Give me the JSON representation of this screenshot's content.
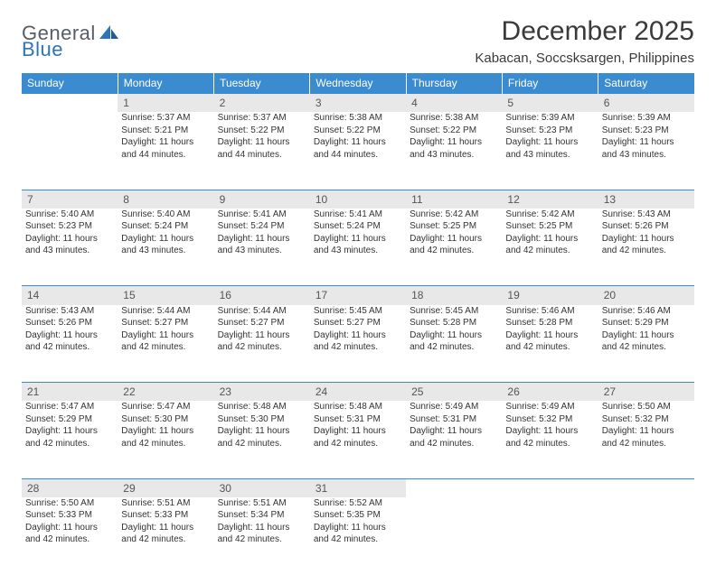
{
  "logo": {
    "text1": "General",
    "text2": "Blue"
  },
  "title": "December 2025",
  "location": "Kabacan, Soccsksargen, Philippines",
  "colors": {
    "header_bg": "#3b8bd0",
    "header_text": "#ffffff",
    "daynum_bg": "#e8e8e8",
    "border": "#3b8bd0",
    "logo_gray": "#555d66",
    "logo_blue": "#2e75b6"
  },
  "weekdays": [
    "Sunday",
    "Monday",
    "Tuesday",
    "Wednesday",
    "Thursday",
    "Friday",
    "Saturday"
  ],
  "weeks": [
    {
      "nums": [
        "",
        "1",
        "2",
        "3",
        "4",
        "5",
        "6"
      ],
      "cells": [
        null,
        {
          "sr": "Sunrise: 5:37 AM",
          "ss": "Sunset: 5:21 PM",
          "d1": "Daylight: 11 hours",
          "d2": "and 44 minutes."
        },
        {
          "sr": "Sunrise: 5:37 AM",
          "ss": "Sunset: 5:22 PM",
          "d1": "Daylight: 11 hours",
          "d2": "and 44 minutes."
        },
        {
          "sr": "Sunrise: 5:38 AM",
          "ss": "Sunset: 5:22 PM",
          "d1": "Daylight: 11 hours",
          "d2": "and 44 minutes."
        },
        {
          "sr": "Sunrise: 5:38 AM",
          "ss": "Sunset: 5:22 PM",
          "d1": "Daylight: 11 hours",
          "d2": "and 43 minutes."
        },
        {
          "sr": "Sunrise: 5:39 AM",
          "ss": "Sunset: 5:23 PM",
          "d1": "Daylight: 11 hours",
          "d2": "and 43 minutes."
        },
        {
          "sr": "Sunrise: 5:39 AM",
          "ss": "Sunset: 5:23 PM",
          "d1": "Daylight: 11 hours",
          "d2": "and 43 minutes."
        }
      ]
    },
    {
      "nums": [
        "7",
        "8",
        "9",
        "10",
        "11",
        "12",
        "13"
      ],
      "cells": [
        {
          "sr": "Sunrise: 5:40 AM",
          "ss": "Sunset: 5:23 PM",
          "d1": "Daylight: 11 hours",
          "d2": "and 43 minutes."
        },
        {
          "sr": "Sunrise: 5:40 AM",
          "ss": "Sunset: 5:24 PM",
          "d1": "Daylight: 11 hours",
          "d2": "and 43 minutes."
        },
        {
          "sr": "Sunrise: 5:41 AM",
          "ss": "Sunset: 5:24 PM",
          "d1": "Daylight: 11 hours",
          "d2": "and 43 minutes."
        },
        {
          "sr": "Sunrise: 5:41 AM",
          "ss": "Sunset: 5:24 PM",
          "d1": "Daylight: 11 hours",
          "d2": "and 43 minutes."
        },
        {
          "sr": "Sunrise: 5:42 AM",
          "ss": "Sunset: 5:25 PM",
          "d1": "Daylight: 11 hours",
          "d2": "and 42 minutes."
        },
        {
          "sr": "Sunrise: 5:42 AM",
          "ss": "Sunset: 5:25 PM",
          "d1": "Daylight: 11 hours",
          "d2": "and 42 minutes."
        },
        {
          "sr": "Sunrise: 5:43 AM",
          "ss": "Sunset: 5:26 PM",
          "d1": "Daylight: 11 hours",
          "d2": "and 42 minutes."
        }
      ]
    },
    {
      "nums": [
        "14",
        "15",
        "16",
        "17",
        "18",
        "19",
        "20"
      ],
      "cells": [
        {
          "sr": "Sunrise: 5:43 AM",
          "ss": "Sunset: 5:26 PM",
          "d1": "Daylight: 11 hours",
          "d2": "and 42 minutes."
        },
        {
          "sr": "Sunrise: 5:44 AM",
          "ss": "Sunset: 5:27 PM",
          "d1": "Daylight: 11 hours",
          "d2": "and 42 minutes."
        },
        {
          "sr": "Sunrise: 5:44 AM",
          "ss": "Sunset: 5:27 PM",
          "d1": "Daylight: 11 hours",
          "d2": "and 42 minutes."
        },
        {
          "sr": "Sunrise: 5:45 AM",
          "ss": "Sunset: 5:27 PM",
          "d1": "Daylight: 11 hours",
          "d2": "and 42 minutes."
        },
        {
          "sr": "Sunrise: 5:45 AM",
          "ss": "Sunset: 5:28 PM",
          "d1": "Daylight: 11 hours",
          "d2": "and 42 minutes."
        },
        {
          "sr": "Sunrise: 5:46 AM",
          "ss": "Sunset: 5:28 PM",
          "d1": "Daylight: 11 hours",
          "d2": "and 42 minutes."
        },
        {
          "sr": "Sunrise: 5:46 AM",
          "ss": "Sunset: 5:29 PM",
          "d1": "Daylight: 11 hours",
          "d2": "and 42 minutes."
        }
      ]
    },
    {
      "nums": [
        "21",
        "22",
        "23",
        "24",
        "25",
        "26",
        "27"
      ],
      "cells": [
        {
          "sr": "Sunrise: 5:47 AM",
          "ss": "Sunset: 5:29 PM",
          "d1": "Daylight: 11 hours",
          "d2": "and 42 minutes."
        },
        {
          "sr": "Sunrise: 5:47 AM",
          "ss": "Sunset: 5:30 PM",
          "d1": "Daylight: 11 hours",
          "d2": "and 42 minutes."
        },
        {
          "sr": "Sunrise: 5:48 AM",
          "ss": "Sunset: 5:30 PM",
          "d1": "Daylight: 11 hours",
          "d2": "and 42 minutes."
        },
        {
          "sr": "Sunrise: 5:48 AM",
          "ss": "Sunset: 5:31 PM",
          "d1": "Daylight: 11 hours",
          "d2": "and 42 minutes."
        },
        {
          "sr": "Sunrise: 5:49 AM",
          "ss": "Sunset: 5:31 PM",
          "d1": "Daylight: 11 hours",
          "d2": "and 42 minutes."
        },
        {
          "sr": "Sunrise: 5:49 AM",
          "ss": "Sunset: 5:32 PM",
          "d1": "Daylight: 11 hours",
          "d2": "and 42 minutes."
        },
        {
          "sr": "Sunrise: 5:50 AM",
          "ss": "Sunset: 5:32 PM",
          "d1": "Daylight: 11 hours",
          "d2": "and 42 minutes."
        }
      ]
    },
    {
      "nums": [
        "28",
        "29",
        "30",
        "31",
        "",
        "",
        ""
      ],
      "cells": [
        {
          "sr": "Sunrise: 5:50 AM",
          "ss": "Sunset: 5:33 PM",
          "d1": "Daylight: 11 hours",
          "d2": "and 42 minutes."
        },
        {
          "sr": "Sunrise: 5:51 AM",
          "ss": "Sunset: 5:33 PM",
          "d1": "Daylight: 11 hours",
          "d2": "and 42 minutes."
        },
        {
          "sr": "Sunrise: 5:51 AM",
          "ss": "Sunset: 5:34 PM",
          "d1": "Daylight: 11 hours",
          "d2": "and 42 minutes."
        },
        {
          "sr": "Sunrise: 5:52 AM",
          "ss": "Sunset: 5:35 PM",
          "d1": "Daylight: 11 hours",
          "d2": "and 42 minutes."
        },
        null,
        null,
        null
      ]
    }
  ]
}
